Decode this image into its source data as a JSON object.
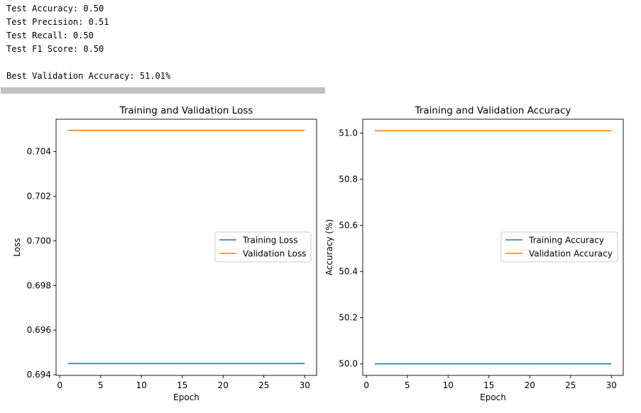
{
  "console": {
    "lines": [
      "Test Accuracy: 0.50",
      "Test Precision: 0.51",
      "Test Recall: 0.50",
      "Test F1 Score: 0.50",
      "",
      "Best Validation Accuracy: 51.01%"
    ]
  },
  "chart_data": [
    {
      "type": "line",
      "title": "Training and Validation Loss",
      "xlabel": "Epoch",
      "ylabel": "Loss",
      "xlim": [
        -0.45,
        31.45
      ],
      "ylim": [
        0.69397,
        0.70545
      ],
      "xticks": [
        0,
        5,
        10,
        15,
        20,
        25,
        30
      ],
      "yticks": [
        0.694,
        0.696,
        0.698,
        0.7,
        0.702,
        0.704
      ],
      "ytick_labels": [
        "0.694",
        "0.696",
        "0.698",
        "0.700",
        "0.702",
        "0.704"
      ],
      "x": [
        1,
        30
      ],
      "series": [
        {
          "name": "Training Loss",
          "color": "#1f77b4",
          "values": [
            0.6945,
            0.6945
          ]
        },
        {
          "name": "Validation Loss",
          "color": "#ff7f0e",
          "values": [
            0.70495,
            0.70495
          ]
        }
      ],
      "legend": "center-right",
      "grid": false
    },
    {
      "type": "line",
      "title": "Training and Validation Accuracy",
      "xlabel": "Epoch",
      "ylabel": "Accuracy (%)",
      "xlim": [
        -0.45,
        31.45
      ],
      "ylim": [
        49.95,
        51.06
      ],
      "xticks": [
        0,
        5,
        10,
        15,
        20,
        25,
        30
      ],
      "yticks": [
        50.0,
        50.2,
        50.4,
        50.6,
        50.8,
        51.0
      ],
      "ytick_labels": [
        "50.0",
        "50.2",
        "50.4",
        "50.6",
        "50.8",
        "51.0"
      ],
      "x": [
        1,
        30
      ],
      "series": [
        {
          "name": "Training Accuracy",
          "color": "#1f77b4",
          "values": [
            50.0,
            50.0
          ]
        },
        {
          "name": "Validation Accuracy",
          "color": "#ff7f0e",
          "values": [
            51.01,
            51.01
          ]
        }
      ],
      "legend": "center-right",
      "grid": false
    }
  ]
}
